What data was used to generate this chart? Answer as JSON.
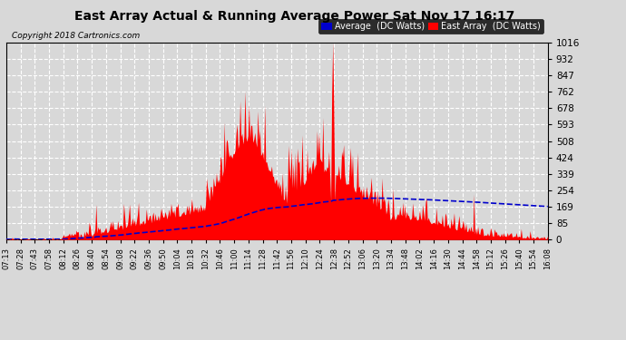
{
  "title": "East Array Actual & Running Average Power Sat Nov 17 16:17",
  "copyright": "Copyright 2018 Cartronics.com",
  "background_color": "#d8d8d8",
  "plot_bg_color": "#d8d8d8",
  "grid_color": "#ffffff",
  "east_array_color": "#ff0000",
  "average_color": "#0000cc",
  "ylim": [
    0.0,
    1016.5
  ],
  "yticks": [
    0.0,
    84.7,
    169.4,
    254.1,
    338.8,
    423.6,
    508.3,
    593.0,
    677.7,
    762.4,
    847.1,
    931.8,
    1016.5
  ],
  "xtick_labels": [
    "07:13",
    "07:28",
    "07:43",
    "07:58",
    "08:12",
    "08:26",
    "08:40",
    "08:54",
    "09:08",
    "09:22",
    "09:36",
    "09:50",
    "10:04",
    "10:18",
    "10:32",
    "10:46",
    "11:00",
    "11:14",
    "11:28",
    "11:42",
    "11:56",
    "12:10",
    "12:24",
    "12:38",
    "12:52",
    "13:06",
    "13:20",
    "13:34",
    "13:48",
    "14:02",
    "14:16",
    "14:30",
    "14:44",
    "14:58",
    "15:12",
    "15:26",
    "15:40",
    "15:54",
    "16:08"
  ],
  "legend_avg_label": "Average  (DC Watts)",
  "legend_east_label": "East Array  (DC Watts)"
}
